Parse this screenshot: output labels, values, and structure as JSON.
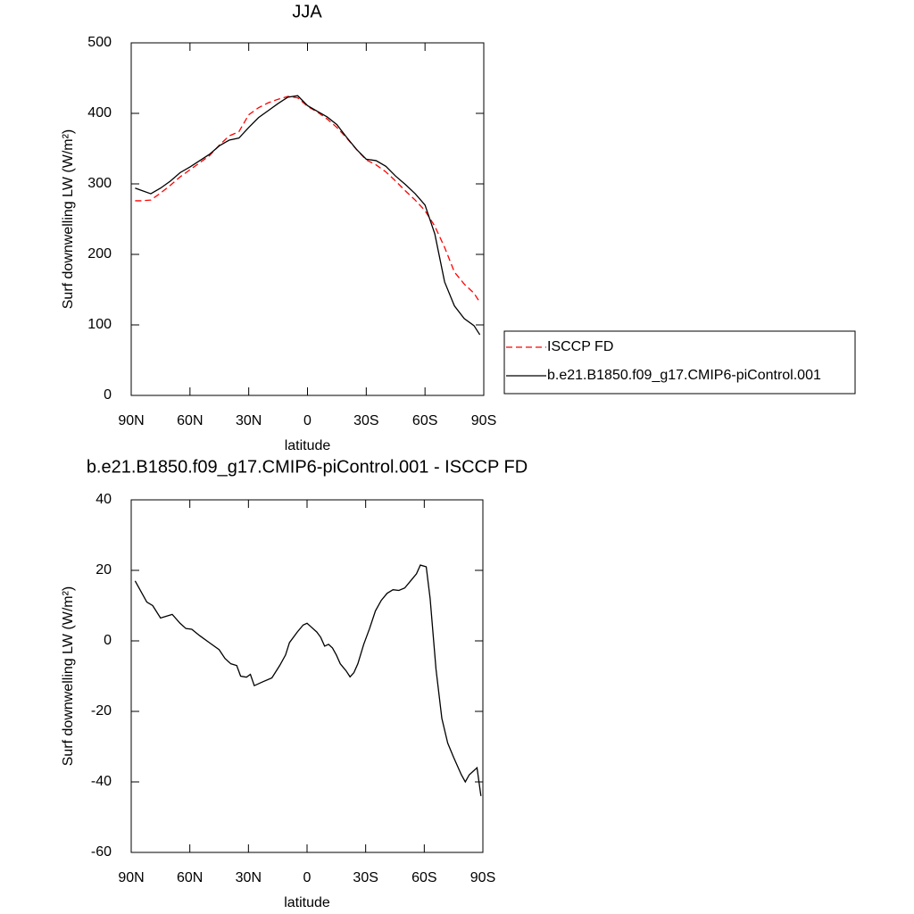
{
  "chart_data": [
    {
      "type": "line",
      "title": "JJA",
      "x_label": "latitude",
      "y_label": "Surf downwelling LW (W/m²)",
      "xlim": [
        90,
        -90
      ],
      "xticks": [
        {
          "value": 90,
          "label": "90N"
        },
        {
          "value": 60,
          "label": "60N"
        },
        {
          "value": 30,
          "label": "30N"
        },
        0,
        {
          "value": -30,
          "label": "30S"
        },
        {
          "value": -60,
          "label": "60S"
        },
        {
          "value": -90,
          "label": "90S"
        }
      ],
      "ylim": [
        0,
        500
      ],
      "yticks": [
        0,
        100,
        200,
        300,
        400,
        500
      ],
      "legend": "right",
      "x": [
        88,
        85,
        80,
        75,
        70,
        65,
        60,
        55,
        50,
        45,
        40,
        35,
        30,
        25,
        20,
        15,
        10,
        5,
        0,
        -5,
        -10,
        -15,
        -20,
        -25,
        -30,
        -35,
        -40,
        -45,
        -50,
        -55,
        -60,
        -65,
        -70,
        -75,
        -80,
        -85,
        -88
      ],
      "series": [
        {
          "name": "ISCCP FD",
          "color": "#ff0000",
          "dash": true,
          "values": [
            276,
            276,
            277,
            287,
            298,
            310,
            320,
            330,
            340,
            355,
            368,
            374,
            398,
            408,
            415,
            420,
            424,
            422,
            410,
            402,
            392,
            380,
            365,
            349,
            334,
            327,
            317,
            304,
            290,
            277,
            262,
            240,
            210,
            175,
            158,
            145,
            132
          ]
        },
        {
          "name": "b.e21.B1850.f09_g17.CMIP6-piControl.001",
          "color": "#000000",
          "dash": false,
          "values": [
            294,
            291,
            286,
            294,
            304,
            316,
            324,
            333,
            342,
            354,
            362,
            365,
            380,
            394,
            404,
            414,
            423,
            425,
            411,
            403,
            395,
            384,
            366,
            349,
            335,
            333,
            325,
            311,
            299,
            286,
            270,
            229,
            161,
            127,
            109,
            99,
            86
          ]
        }
      ]
    },
    {
      "type": "line",
      "title": "b.e21.B1850.f09_g17.CMIP6-piControl.001 - ISCCP FD",
      "x_label": "latitude",
      "y_label": "Surf downwelling LW (W/m²)",
      "xlim": [
        90,
        -90
      ],
      "xticks": [
        {
          "value": 90,
          "label": "90N"
        },
        {
          "value": 60,
          "label": "60N"
        },
        {
          "value": 30,
          "label": "30N"
        },
        0,
        {
          "value": -30,
          "label": "30S"
        },
        {
          "value": -60,
          "label": "60S"
        },
        {
          "value": -90,
          "label": "90S"
        }
      ],
      "ylim": [
        -60,
        40
      ],
      "yticks": [
        -60,
        -40,
        -20,
        0,
        20,
        40
      ],
      "x": [
        88,
        85,
        82,
        79,
        75,
        72,
        69,
        65,
        62,
        59,
        55,
        50,
        45,
        42,
        39,
        36,
        34,
        31,
        29,
        27,
        23,
        18,
        14,
        11,
        9,
        5,
        2,
        0,
        -2,
        -5,
        -7,
        -9,
        -11,
        -13,
        -15,
        -17,
        -20,
        -22,
        -24,
        -26,
        -29,
        -32,
        -35,
        -38,
        -41,
        -44,
        -47,
        -50,
        -53,
        -56,
        -58,
        -61,
        -63,
        -66,
        -69,
        -72,
        -75,
        -79,
        -81,
        -83,
        -85,
        -87,
        -89
      ],
      "series": [
        {
          "color": "#000000",
          "dash": false,
          "values": [
            17,
            14,
            11,
            10,
            6.5,
            7,
            7.5,
            5,
            3.5,
            3.3,
            1.5,
            -0.5,
            -2.5,
            -5,
            -6.5,
            -7,
            -10,
            -10.3,
            -9.5,
            -12.7,
            -11.7,
            -10.5,
            -7,
            -4,
            -0.5,
            2.5,
            4.5,
            5,
            4,
            2.5,
            1,
            -1.5,
            -1,
            -2,
            -4,
            -6.5,
            -8.5,
            -10.2,
            -9,
            -6.5,
            -1,
            3.5,
            8.5,
            11.5,
            13.5,
            14.5,
            14.3,
            15,
            17,
            19,
            21.5,
            21,
            12,
            -8,
            -22,
            -29,
            -33,
            -38,
            -40,
            -38,
            -37,
            -36,
            -44
          ]
        }
      ]
    }
  ]
}
